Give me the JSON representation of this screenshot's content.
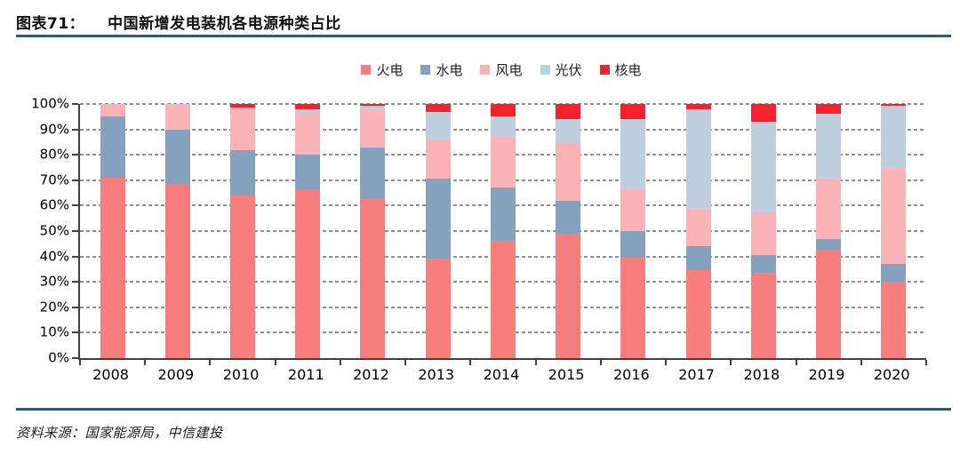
{
  "header": {
    "figure_label": "图表71：",
    "title": "中国新增发电装机各电源种类占比"
  },
  "footer": {
    "source_text": "资料来源：国家能源局，中信建投"
  },
  "colors": {
    "rule_blue": "#1f5c99",
    "axis": "#404040",
    "gridline": "#8f8f8f"
  },
  "chart_data": {
    "type": "bar",
    "stacked": true,
    "unit": "%",
    "title": "中国新增发电装机各电源种类占比",
    "categories": [
      "2008",
      "2009",
      "2010",
      "2011",
      "2012",
      "2013",
      "2014",
      "2015",
      "2016",
      "2017",
      "2018",
      "2019",
      "2020"
    ],
    "series": [
      {
        "key": "thermal",
        "name": "火电",
        "color": "#F87D7D",
        "values": [
          71,
          68.5,
          64,
          66.5,
          62.5,
          39,
          46,
          49,
          40,
          34.5,
          33.5,
          42.5,
          30
        ]
      },
      {
        "key": "hydro",
        "name": "水电",
        "color": "#84A1BD",
        "values": [
          24,
          21.5,
          18,
          13.5,
          20.5,
          31.5,
          21,
          13,
          10,
          9.5,
          7,
          4.5,
          7
        ]
      },
      {
        "key": "wind",
        "name": "风电",
        "color": "#F9B3B6",
        "values": [
          5,
          10,
          16.5,
          16.5,
          14.5,
          15.5,
          20,
          22.5,
          16,
          14.5,
          17,
          23.5,
          37.5
        ]
      },
      {
        "key": "solar",
        "name": "光伏",
        "color": "#BFCEDC",
        "values": [
          0,
          0,
          0,
          1.3,
          1.8,
          11,
          8,
          9.5,
          28,
          39.5,
          35.5,
          25.5,
          24.8
        ]
      },
      {
        "key": "nuclear",
        "name": "核电",
        "color": "#F5222D",
        "values": [
          0,
          0,
          1.5,
          2.2,
          0.7,
          3,
          5,
          6,
          6,
          2,
          7,
          4,
          0.7
        ]
      }
    ],
    "ylim": [
      0,
      100
    ],
    "y_ticks": [
      "0%",
      "10%",
      "20%",
      "30%",
      "40%",
      "50%",
      "60%",
      "70%",
      "80%",
      "90%",
      "100%"
    ],
    "legend_position": "top",
    "grid": "horizontal-dashed"
  }
}
